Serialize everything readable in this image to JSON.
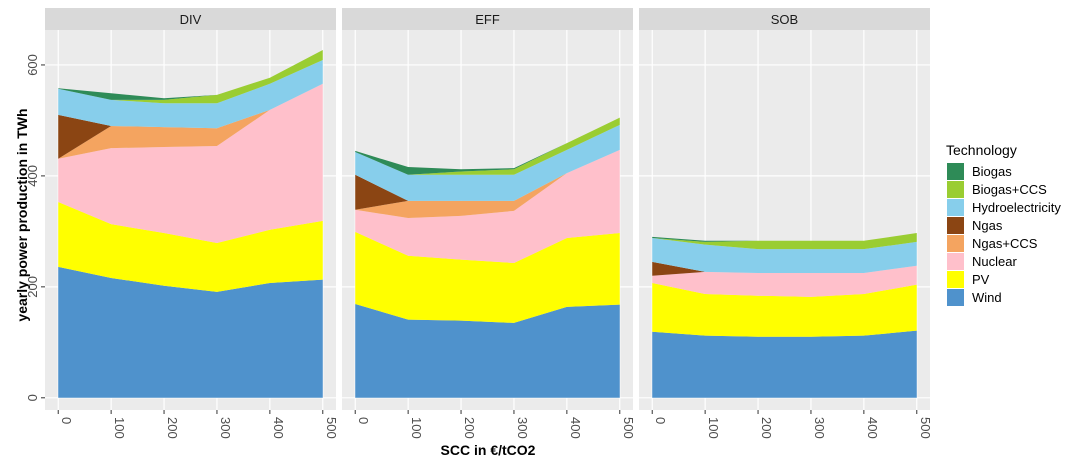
{
  "chart_data": [
    {
      "type": "area",
      "title": "DIV",
      "x": [
        0,
        100,
        200,
        300,
        400,
        500
      ],
      "xlim": [
        -25,
        525
      ],
      "ylim": [
        -22,
        663
      ],
      "xticks": [
        0,
        100,
        200,
        300,
        400,
        500
      ],
      "yticks": [
        0,
        200,
        400,
        600
      ],
      "grid": true,
      "series": [
        {
          "name": "Wind",
          "color": "#4f92cc",
          "values": [
            236,
            216,
            202,
            191,
            207,
            213
          ]
        },
        {
          "name": "PV",
          "color": "#ffff00",
          "values": [
            117,
            97,
            95,
            88,
            96,
            106
          ]
        },
        {
          "name": "Nuclear",
          "color": "#ffc0cb",
          "values": [
            78,
            137,
            155,
            175,
            216,
            247
          ]
        },
        {
          "name": "Ngas+CCS",
          "color": "#f4a460",
          "values": [
            0,
            40,
            36,
            32,
            0,
            0
          ]
        },
        {
          "name": "Ngas",
          "color": "#8b4513",
          "values": [
            79,
            0,
            0,
            0,
            0,
            0
          ]
        },
        {
          "name": "Hydroelectricity",
          "color": "#87ceeb",
          "values": [
            47,
            47,
            43,
            45,
            47,
            43
          ]
        },
        {
          "name": "Biogas+CCS",
          "color": "#9acd32",
          "values": [
            0,
            0,
            6,
            15,
            11,
            18
          ]
        },
        {
          "name": "Biogas",
          "color": "#2e8b57",
          "values": [
            1,
            12,
            3,
            0,
            0,
            0
          ]
        }
      ]
    },
    {
      "type": "area",
      "title": "EFF",
      "x": [
        0,
        100,
        200,
        300,
        400,
        500
      ],
      "xlim": [
        -25,
        525
      ],
      "ylim": [
        -22,
        663
      ],
      "xticks": [
        0,
        100,
        200,
        300,
        400,
        500
      ],
      "yticks": [
        0,
        200,
        400,
        600
      ],
      "grid": true,
      "series": [
        {
          "name": "Wind",
          "color": "#4f92cc",
          "values": [
            169,
            141,
            139,
            135,
            164,
            168
          ]
        },
        {
          "name": "PV",
          "color": "#ffff00",
          "values": [
            130,
            115,
            110,
            108,
            124,
            129
          ]
        },
        {
          "name": "Nuclear",
          "color": "#ffc0cb",
          "values": [
            40,
            68,
            79,
            94,
            117,
            150
          ]
        },
        {
          "name": "Ngas+CCS",
          "color": "#f4a460",
          "values": [
            0,
            31,
            27,
            18,
            0,
            0
          ]
        },
        {
          "name": "Ngas",
          "color": "#8b4513",
          "values": [
            63,
            0,
            0,
            0,
            0,
            0
          ]
        },
        {
          "name": "Hydroelectricity",
          "color": "#87ceeb",
          "values": [
            41,
            47,
            47,
            47,
            42,
            45
          ]
        },
        {
          "name": "Biogas+CCS",
          "color": "#9acd32",
          "values": [
            0,
            0,
            6,
            10,
            12,
            13
          ]
        },
        {
          "name": "Biogas",
          "color": "#2e8b57",
          "values": [
            2,
            14,
            4,
            2,
            0,
            0
          ]
        }
      ]
    },
    {
      "type": "area",
      "title": "SOB",
      "x": [
        0,
        100,
        200,
        300,
        400,
        500
      ],
      "xlim": [
        -25,
        525
      ],
      "ylim": [
        -22,
        663
      ],
      "xticks": [
        0,
        100,
        200,
        300,
        400,
        500
      ],
      "yticks": [
        0,
        200,
        400,
        600
      ],
      "grid": true,
      "series": [
        {
          "name": "Wind",
          "color": "#4f92cc",
          "values": [
            119,
            112,
            110,
            110,
            112,
            121
          ]
        },
        {
          "name": "PV",
          "color": "#ffff00",
          "values": [
            88,
            75,
            74,
            72,
            75,
            83
          ]
        },
        {
          "name": "Nuclear",
          "color": "#ffc0cb",
          "values": [
            13,
            40,
            41,
            43,
            38,
            34
          ]
        },
        {
          "name": "Ngas+CCS",
          "color": "#f4a460",
          "values": [
            0,
            0,
            0,
            0,
            0,
            0
          ]
        },
        {
          "name": "Ngas",
          "color": "#8b4513",
          "values": [
            25,
            0,
            0,
            0,
            0,
            0
          ]
        },
        {
          "name": "Hydroelectricity",
          "color": "#87ceeb",
          "values": [
            43,
            49,
            43,
            43,
            43,
            43
          ]
        },
        {
          "name": "Biogas+CCS",
          "color": "#9acd32",
          "values": [
            0,
            5,
            15,
            15,
            15,
            16
          ]
        },
        {
          "name": "Biogas",
          "color": "#2e8b57",
          "values": [
            2,
            2,
            0,
            0,
            0,
            0
          ]
        }
      ]
    }
  ],
  "xlabel": "SCC in €/tCO2",
  "ylabel": "yearly power production in TWh",
  "legend_title": "Technology",
  "legend_order": [
    7,
    6,
    5,
    4,
    3,
    2,
    1,
    0
  ]
}
